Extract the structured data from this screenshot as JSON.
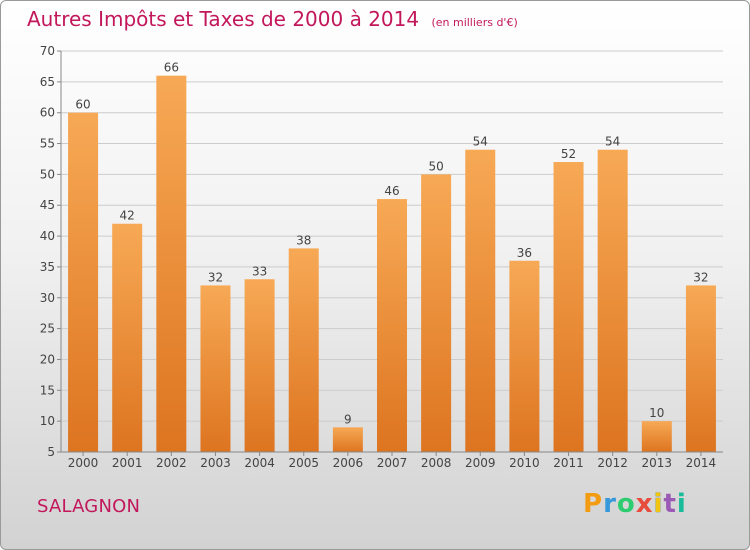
{
  "header": {
    "title": "Autres Impôts et Taxes de 2000 à 2014",
    "unit": "(en milliers d'€)"
  },
  "footer": {
    "commune": "SALAGNON",
    "logo_text": "Proxiti",
    "logo_colors": [
      "#f39c12",
      "#3498db",
      "#2ecc71",
      "#e74c3c",
      "#f1c40f",
      "#9b59b6",
      "#1abc9c"
    ]
  },
  "colors": {
    "title": "#c2185b",
    "bar_light": "#f7a955",
    "bar_dark": "#dd7420",
    "axis": "#888888",
    "grid": "#cccccc"
  },
  "chart_data": {
    "type": "bar",
    "categories": [
      "2000",
      "2001",
      "2002",
      "2003",
      "2004",
      "2005",
      "2006",
      "2007",
      "2008",
      "2009",
      "2010",
      "2011",
      "2012",
      "2013",
      "2014"
    ],
    "values": [
      60,
      42,
      66,
      32,
      33,
      38,
      9,
      46,
      50,
      54,
      36,
      52,
      54,
      10,
      32
    ],
    "ylim": [
      5,
      70
    ],
    "yticks": [
      5,
      10,
      15,
      20,
      25,
      30,
      35,
      40,
      45,
      50,
      55,
      60,
      65,
      70
    ],
    "grid": true,
    "legend": "none"
  }
}
